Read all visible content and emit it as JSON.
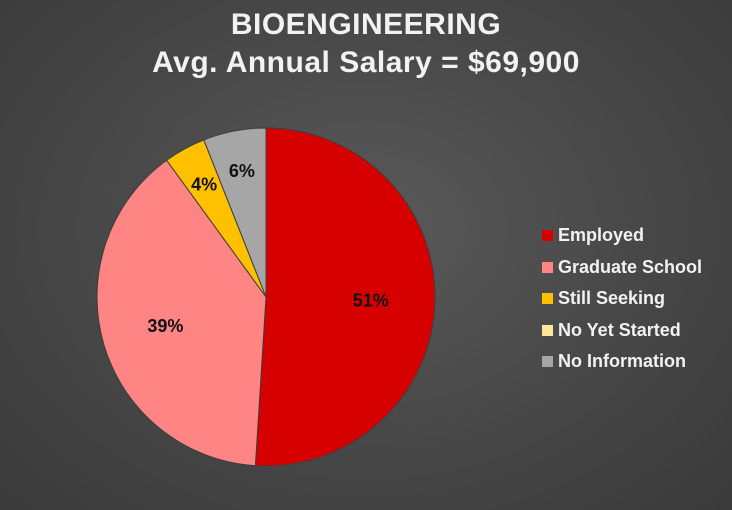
{
  "chart_data": {
    "type": "pie",
    "title": "BIOENGINEERING",
    "subtitle": "Avg. Annual Salary = $69,900",
    "categories": [
      "Employed",
      "Graduate School",
      "Still Seeking",
      "No Yet Started",
      "No Information"
    ],
    "values": [
      51,
      39,
      4,
      0,
      6
    ],
    "data_labels": [
      "51%",
      "39%",
      "4%",
      "",
      "6%"
    ],
    "colors": [
      "#d60000",
      "#ff8585",
      "#ffc000",
      "#ffe699",
      "#a6a6a6"
    ],
    "legend_position": "right"
  }
}
